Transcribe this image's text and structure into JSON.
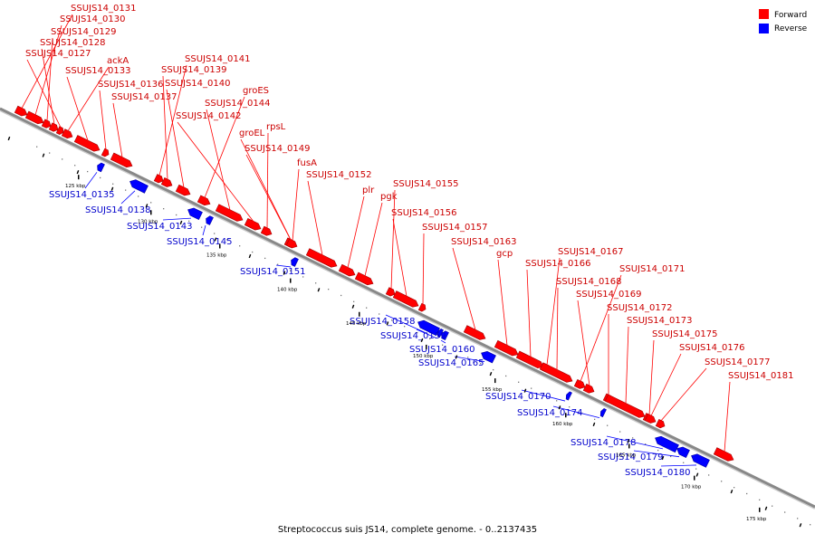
{
  "caption": "Streptococcus suis JS14, complete genome. - 0..2137435",
  "legend": [
    {
      "label": "Forward",
      "color": "#ff0000"
    },
    {
      "label": "Reverse",
      "color": "#0000ff"
    }
  ],
  "colors": {
    "forward": "#ff0000",
    "reverse": "#0000ff",
    "backbone": "#888888"
  },
  "ticks": [
    "125 kbp",
    "130 kbp",
    "135 kbp",
    "140 kbp",
    "145 kbp",
    "150 kbp",
    "155 kbp",
    "160 kbp",
    "165 kbp",
    "170 kbp",
    "175 kbp"
  ],
  "forward_genes": [
    "SSUJS14_0131",
    "SSUJS14_0130",
    "SSUJS14_0129",
    "SSUJS14_0128",
    "SSUJS14_0127",
    "ackA",
    "SSUJS14_0133",
    "SSUJS14_0136",
    "SSUJS14_0137",
    "SSUJS14_0141",
    "SSUJS14_0139",
    "SSUJS14_0140",
    "groES",
    "SSUJS14_0144",
    "SSUJS14_0142",
    "rpsL",
    "groEL",
    "SSUJS14_0149",
    "fusA",
    "SSUJS14_0152",
    "SSUJS14_0155",
    "plr",
    "pgk",
    "SSUJS14_0156",
    "SSUJS14_0157",
    "SSUJS14_0163",
    "gcp",
    "SSUJS14_0167",
    "SSUJS14_0166",
    "SSUJS14_0171",
    "SSUJS14_0168",
    "SSUJS14_0169",
    "SSUJS14_0172",
    "SSUJS14_0173",
    "SSUJS14_0175",
    "SSUJS14_0176",
    "SSUJS14_0177",
    "SSUJS14_0181"
  ],
  "reverse_genes": [
    "SSUJS14_0135",
    "SSUJS14_0138",
    "SSUJS14_0143",
    "SSUJS14_0145",
    "SSUJS14_0151",
    "SSUJS14_0158",
    "SSUJS14_0159",
    "SSUJS14_0160",
    "SSUJS14_0165",
    "SSUJS14_0170",
    "SSUJS14_0174",
    "SSUJS14_0178",
    "SSUJS14_0179",
    "SSUJS14_0180"
  ]
}
